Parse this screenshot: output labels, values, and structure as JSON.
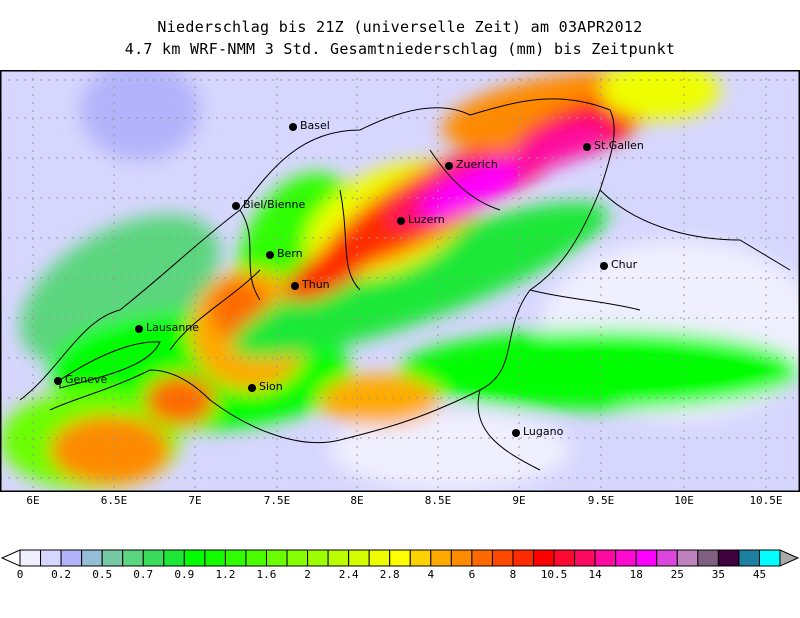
{
  "title": {
    "line1": "Niederschlag bis 21Z (universelle Zeit) am 03APR2012",
    "line2": "4.7 km WRF-NMM 3 Std. Gesamtniederschlag (mm) bis Zeitpunkt"
  },
  "map": {
    "lon_ticks": [
      "6E",
      "6.5E",
      "7E",
      "7.5E",
      "8E",
      "8.5E",
      "9E",
      "9.5E",
      "10E",
      "10.5E"
    ],
    "cities": [
      "Basel",
      "Zuerich",
      "St.Gallen",
      "Biel/Bienne",
      "Luzern",
      "Bern",
      "Chur",
      "Thun",
      "Lausanne",
      "Geneve",
      "Sion",
      "Lugano"
    ]
  },
  "colorbar": {
    "labels": [
      "0",
      "0.2",
      "0.5",
      "0.7",
      "0.9",
      "1.2",
      "1.6",
      "2",
      "2.4",
      "2.8",
      "4",
      "6",
      "8",
      "10.5",
      "14",
      "18",
      "25",
      "35",
      "45"
    ],
    "colors": [
      "#efeffe",
      "#d7d6fe",
      "#b3b3fb",
      "#93bed6",
      "#77c9a6",
      "#5bd67e",
      "#3adc5c",
      "#1ee837",
      "#00fe00",
      "#12fd00",
      "#2efe00",
      "#4bfe00",
      "#6afe00",
      "#84fe00",
      "#9cfe00",
      "#bafe00",
      "#d4fe00",
      "#eefe00",
      "#fefe00",
      "#fed200",
      "#feaa00",
      "#fe8a00",
      "#fe6a00",
      "#fe4800",
      "#fe2a00",
      "#fe0000",
      "#fe0a30",
      "#fe0a62",
      "#fe0aa0",
      "#fe0ad0",
      "#fe00fe",
      "#dc46dc",
      "#be82be",
      "#806080",
      "#400040",
      "#1e80a0",
      "#00fefe"
    ]
  }
}
